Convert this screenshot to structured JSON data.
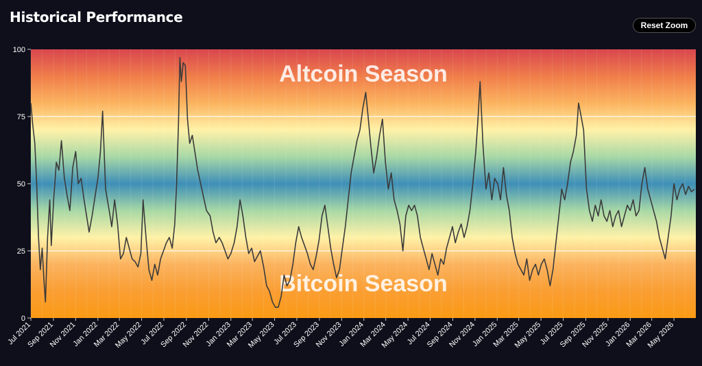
{
  "header": {
    "title": "Historical Performance",
    "reset_zoom_label": "Reset Zoom"
  },
  "colors": {
    "page_background": "#0e0f1a",
    "line": "#3a3a3a",
    "gradient": [
      "#d9464f",
      "#f07d4a",
      "#fbb35f",
      "#fff2a8",
      "#a8d8a6",
      "#3e8fb8",
      "#a8d8a6",
      "#fff2a8",
      "#fbb35f",
      "#fa9e33",
      "#fa9a14"
    ]
  },
  "chart_data": {
    "type": "line",
    "ylim": [
      0,
      100
    ],
    "y_ticks": [
      0,
      25,
      50,
      75,
      100
    ],
    "grid_lines_y": [
      25,
      75
    ],
    "x_start": "2021-07-01",
    "x_end": "2026-06-30",
    "x_tick_labels": [
      "Jul 2021",
      "Sep 2021",
      "Nov 2021",
      "Jan 2022",
      "Mar 2022",
      "May 2022",
      "Jul 2022",
      "Sep 2022",
      "Nov 2022",
      "Jan 2023",
      "Mar 2023",
      "May 2023",
      "Jul 2023",
      "Sep 2023",
      "Nov 2023",
      "Jan 2024",
      "Mar 2024",
      "May 2024",
      "Jul 2024",
      "Sep 2024",
      "Nov 2024",
      "Jan 2025",
      "Mar 2025",
      "May 2025",
      "Jul 2025",
      "Sep 2025",
      "Nov 2025",
      "Jan 2026",
      "Mar 2026",
      "May 2026"
    ],
    "annotations": {
      "top": "Altcoin Season",
      "bottom": "Bitcoin Season"
    },
    "series": [
      {
        "points": [
          [
            "2021-07-01",
            80
          ],
          [
            "2021-07-06",
            72
          ],
          [
            "2021-07-12",
            65
          ],
          [
            "2021-07-17",
            50
          ],
          [
            "2021-07-22",
            30
          ],
          [
            "2021-07-27",
            18
          ],
          [
            "2021-08-01",
            26
          ],
          [
            "2021-08-06",
            14
          ],
          [
            "2021-08-10",
            6
          ],
          [
            "2021-08-16",
            30
          ],
          [
            "2021-08-22",
            44
          ],
          [
            "2021-08-26",
            27
          ],
          [
            "2021-09-02",
            45
          ],
          [
            "2021-09-09",
            58
          ],
          [
            "2021-09-16",
            55
          ],
          [
            "2021-09-23",
            66
          ],
          [
            "2021-10-01",
            52
          ],
          [
            "2021-10-08",
            46
          ],
          [
            "2021-10-16",
            40
          ],
          [
            "2021-10-24",
            56
          ],
          [
            "2021-11-01",
            62
          ],
          [
            "2021-11-08",
            50
          ],
          [
            "2021-11-16",
            52
          ],
          [
            "2021-11-24",
            44
          ],
          [
            "2021-12-01",
            38
          ],
          [
            "2021-12-08",
            32
          ],
          [
            "2021-12-16",
            38
          ],
          [
            "2021-12-24",
            45
          ],
          [
            "2022-01-01",
            52
          ],
          [
            "2022-01-08",
            62
          ],
          [
            "2022-01-14",
            77
          ],
          [
            "2022-01-22",
            48
          ],
          [
            "2022-02-01",
            40
          ],
          [
            "2022-02-08",
            34
          ],
          [
            "2022-02-16",
            44
          ],
          [
            "2022-02-24",
            35
          ],
          [
            "2022-03-04",
            22
          ],
          [
            "2022-03-12",
            24
          ],
          [
            "2022-03-20",
            30
          ],
          [
            "2022-03-28",
            26
          ],
          [
            "2022-04-05",
            22
          ],
          [
            "2022-04-13",
            21
          ],
          [
            "2022-04-21",
            19
          ],
          [
            "2022-04-29",
            24
          ],
          [
            "2022-05-05",
            44
          ],
          [
            "2022-05-13",
            30
          ],
          [
            "2022-05-21",
            18
          ],
          [
            "2022-05-29",
            14
          ],
          [
            "2022-06-06",
            20
          ],
          [
            "2022-06-14",
            16
          ],
          [
            "2022-06-22",
            22
          ],
          [
            "2022-06-30",
            25
          ],
          [
            "2022-07-08",
            28
          ],
          [
            "2022-07-16",
            30
          ],
          [
            "2022-07-24",
            26
          ],
          [
            "2022-07-31",
            35
          ],
          [
            "2022-08-05",
            50
          ],
          [
            "2022-08-10",
            72
          ],
          [
            "2022-08-14",
            97
          ],
          [
            "2022-08-18",
            88
          ],
          [
            "2022-08-23",
            95
          ],
          [
            "2022-08-29",
            94
          ],
          [
            "2022-09-04",
            74
          ],
          [
            "2022-09-10",
            65
          ],
          [
            "2022-09-17",
            68
          ],
          [
            "2022-09-24",
            62
          ],
          [
            "2022-10-02",
            55
          ],
          [
            "2022-10-10",
            50
          ],
          [
            "2022-10-18",
            45
          ],
          [
            "2022-10-26",
            40
          ],
          [
            "2022-11-05",
            38
          ],
          [
            "2022-11-13",
            32
          ],
          [
            "2022-11-21",
            28
          ],
          [
            "2022-11-30",
            30
          ],
          [
            "2022-12-08",
            28
          ],
          [
            "2022-12-16",
            25
          ],
          [
            "2022-12-24",
            22
          ],
          [
            "2023-01-01",
            24
          ],
          [
            "2023-01-10",
            28
          ],
          [
            "2023-01-18",
            34
          ],
          [
            "2023-01-26",
            44
          ],
          [
            "2023-02-03",
            38
          ],
          [
            "2023-02-11",
            30
          ],
          [
            "2023-02-19",
            24
          ],
          [
            "2023-02-27",
            26
          ],
          [
            "2023-03-07",
            21
          ],
          [
            "2023-03-15",
            23
          ],
          [
            "2023-03-23",
            25
          ],
          [
            "2023-04-01",
            19
          ],
          [
            "2023-04-09",
            12
          ],
          [
            "2023-04-17",
            10
          ],
          [
            "2023-04-25",
            6
          ],
          [
            "2023-05-03",
            4
          ],
          [
            "2023-05-11",
            4
          ],
          [
            "2023-05-19",
            8
          ],
          [
            "2023-05-27",
            16
          ],
          [
            "2023-06-04",
            12
          ],
          [
            "2023-06-12",
            14
          ],
          [
            "2023-06-20",
            20
          ],
          [
            "2023-06-28",
            28
          ],
          [
            "2023-07-06",
            34
          ],
          [
            "2023-07-14",
            30
          ],
          [
            "2023-07-22",
            27
          ],
          [
            "2023-07-30",
            24
          ],
          [
            "2023-08-07",
            20
          ],
          [
            "2023-08-15",
            18
          ],
          [
            "2023-08-23",
            23
          ],
          [
            "2023-08-31",
            29
          ],
          [
            "2023-09-08",
            38
          ],
          [
            "2023-09-16",
            42
          ],
          [
            "2023-09-24",
            34
          ],
          [
            "2023-10-02",
            26
          ],
          [
            "2023-10-10",
            20
          ],
          [
            "2023-10-18",
            15
          ],
          [
            "2023-10-26",
            18
          ],
          [
            "2023-11-03",
            26
          ],
          [
            "2023-11-11",
            34
          ],
          [
            "2023-11-19",
            44
          ],
          [
            "2023-11-27",
            54
          ],
          [
            "2023-12-05",
            60
          ],
          [
            "2023-12-13",
            66
          ],
          [
            "2023-12-21",
            70
          ],
          [
            "2023-12-29",
            78
          ],
          [
            "2024-01-06",
            84
          ],
          [
            "2024-01-12",
            76
          ],
          [
            "2024-01-20",
            64
          ],
          [
            "2024-01-28",
            54
          ],
          [
            "2024-02-05",
            60
          ],
          [
            "2024-02-13",
            68
          ],
          [
            "2024-02-21",
            74
          ],
          [
            "2024-02-29",
            58
          ],
          [
            "2024-03-08",
            48
          ],
          [
            "2024-03-16",
            54
          ],
          [
            "2024-03-24",
            44
          ],
          [
            "2024-04-01",
            40
          ],
          [
            "2024-04-09",
            35
          ],
          [
            "2024-04-17",
            25
          ],
          [
            "2024-04-25",
            38
          ],
          [
            "2024-05-03",
            42
          ],
          [
            "2024-05-11",
            40
          ],
          [
            "2024-05-19",
            42
          ],
          [
            "2024-05-27",
            38
          ],
          [
            "2024-06-04",
            30
          ],
          [
            "2024-06-12",
            26
          ],
          [
            "2024-06-20",
            22
          ],
          [
            "2024-06-28",
            18
          ],
          [
            "2024-07-06",
            24
          ],
          [
            "2024-07-14",
            20
          ],
          [
            "2024-07-22",
            16
          ],
          [
            "2024-07-30",
            22
          ],
          [
            "2024-08-07",
            20
          ],
          [
            "2024-08-15",
            26
          ],
          [
            "2024-08-23",
            30
          ],
          [
            "2024-08-31",
            34
          ],
          [
            "2024-09-08",
            28
          ],
          [
            "2024-09-16",
            32
          ],
          [
            "2024-09-24",
            35
          ],
          [
            "2024-10-02",
            30
          ],
          [
            "2024-10-10",
            34
          ],
          [
            "2024-10-18",
            40
          ],
          [
            "2024-10-26",
            50
          ],
          [
            "2024-11-03",
            62
          ],
          [
            "2024-11-09",
            74
          ],
          [
            "2024-11-15",
            88
          ],
          [
            "2024-11-23",
            64
          ],
          [
            "2024-12-01",
            48
          ],
          [
            "2024-12-09",
            54
          ],
          [
            "2024-12-17",
            44
          ],
          [
            "2024-12-25",
            52
          ],
          [
            "2025-01-02",
            50
          ],
          [
            "2025-01-10",
            44
          ],
          [
            "2025-01-18",
            56
          ],
          [
            "2025-01-26",
            46
          ],
          [
            "2025-02-03",
            40
          ],
          [
            "2025-02-11",
            30
          ],
          [
            "2025-02-19",
            24
          ],
          [
            "2025-02-27",
            20
          ],
          [
            "2025-03-07",
            18
          ],
          [
            "2025-03-15",
            16
          ],
          [
            "2025-03-23",
            22
          ],
          [
            "2025-03-31",
            14
          ],
          [
            "2025-04-08",
            18
          ],
          [
            "2025-04-16",
            20
          ],
          [
            "2025-04-24",
            16
          ],
          [
            "2025-05-02",
            20
          ],
          [
            "2025-05-10",
            22
          ],
          [
            "2025-05-18",
            18
          ],
          [
            "2025-05-26",
            12
          ],
          [
            "2025-06-03",
            18
          ],
          [
            "2025-06-11",
            28
          ],
          [
            "2025-06-19",
            38
          ],
          [
            "2025-06-27",
            48
          ],
          [
            "2025-07-05",
            44
          ],
          [
            "2025-07-13",
            50
          ],
          [
            "2025-07-21",
            58
          ],
          [
            "2025-07-29",
            62
          ],
          [
            "2025-08-06",
            68
          ],
          [
            "2025-08-12",
            80
          ],
          [
            "2025-08-18",
            76
          ],
          [
            "2025-08-26",
            70
          ],
          [
            "2025-09-03",
            48
          ],
          [
            "2025-09-11",
            40
          ],
          [
            "2025-09-19",
            36
          ],
          [
            "2025-09-27",
            42
          ],
          [
            "2025-10-05",
            38
          ],
          [
            "2025-10-13",
            44
          ],
          [
            "2025-10-21",
            38
          ],
          [
            "2025-10-29",
            36
          ],
          [
            "2025-11-06",
            40
          ],
          [
            "2025-11-14",
            34
          ],
          [
            "2025-11-22",
            38
          ],
          [
            "2025-11-30",
            40
          ],
          [
            "2025-12-08",
            34
          ],
          [
            "2025-12-16",
            38
          ],
          [
            "2025-12-24",
            42
          ],
          [
            "2026-01-01",
            40
          ],
          [
            "2026-01-09",
            44
          ],
          [
            "2026-01-17",
            38
          ],
          [
            "2026-01-25",
            40
          ],
          [
            "2026-02-02",
            50
          ],
          [
            "2026-02-10",
            56
          ],
          [
            "2026-02-18",
            48
          ],
          [
            "2026-02-26",
            44
          ],
          [
            "2026-03-06",
            40
          ],
          [
            "2026-03-14",
            36
          ],
          [
            "2026-03-22",
            30
          ],
          [
            "2026-03-30",
            26
          ],
          [
            "2026-04-07",
            22
          ],
          [
            "2026-04-15",
            30
          ],
          [
            "2026-04-23",
            38
          ],
          [
            "2026-05-01",
            50
          ],
          [
            "2026-05-09",
            44
          ],
          [
            "2026-05-17",
            48
          ],
          [
            "2026-05-25",
            50
          ],
          [
            "2026-06-02",
            46
          ],
          [
            "2026-06-10",
            49
          ],
          [
            "2026-06-18",
            47
          ],
          [
            "2026-06-26",
            48
          ]
        ]
      }
    ]
  }
}
